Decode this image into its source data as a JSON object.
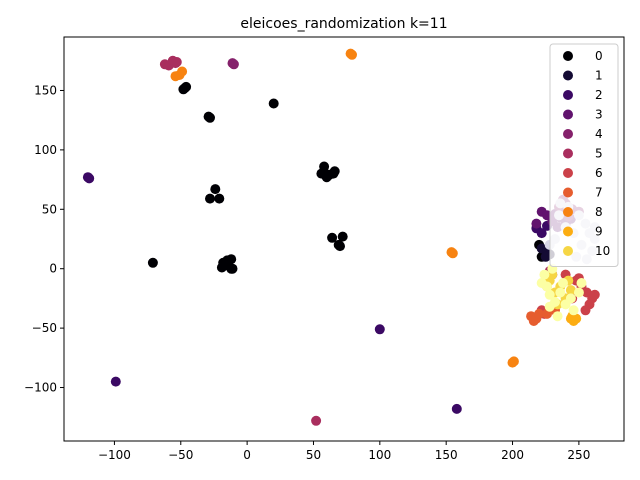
{
  "chart_data": {
    "type": "scatter",
    "title": "eleicoes_randomization k=11",
    "xlabel": "",
    "ylabel": "",
    "xlim": [
      -138,
      284
    ],
    "ylim": [
      -145,
      195
    ],
    "xticks": [
      -100,
      -50,
      0,
      50,
      100,
      150,
      200,
      250
    ],
    "yticks": [
      -100,
      -50,
      0,
      50,
      100,
      150
    ],
    "grid": false,
    "legend_position": "top-right",
    "series": [
      {
        "name": "0",
        "color": "#000004",
        "points": [
          [
            -47,
            152
          ],
          [
            -46,
            153
          ],
          [
            -48,
            151
          ],
          [
            20,
            139
          ],
          [
            -29,
            128
          ],
          [
            -28,
            127
          ],
          [
            -24,
            67
          ],
          [
            -28,
            59
          ],
          [
            -21,
            59
          ],
          [
            -71,
            5
          ],
          [
            -18,
            5
          ],
          [
            -15,
            7
          ],
          [
            -12,
            8
          ],
          [
            -19,
            1
          ],
          [
            -16,
            3
          ],
          [
            -12,
            0
          ],
          [
            -11,
            0
          ],
          [
            56,
            80
          ],
          [
            58,
            86
          ],
          [
            59,
            80
          ],
          [
            60,
            77
          ],
          [
            62,
            79
          ],
          [
            65,
            80
          ],
          [
            66,
            82
          ],
          [
            64,
            26
          ],
          [
            72,
            27
          ],
          [
            70,
            19
          ],
          [
            69,
            20
          ],
          [
            220,
            20
          ],
          [
            222,
            10
          ]
        ]
      },
      {
        "name": "1",
        "color": "#140b34",
        "points": [
          [
            222,
            17
          ],
          [
            226,
            14
          ],
          [
            228,
            12
          ],
          [
            225,
            10
          ]
        ]
      },
      {
        "name": "2",
        "color": "#3b0964",
        "points": [
          [
            -120,
            77
          ],
          [
            -119,
            76
          ],
          [
            -99,
            -95
          ],
          [
            100,
            -51
          ],
          [
            158,
            -118
          ],
          [
            218,
            34
          ],
          [
            222,
            30
          ],
          [
            226,
            36
          ]
        ]
      },
      {
        "name": "3",
        "color": "#61136e",
        "points": [
          [
            222,
            48
          ],
          [
            226,
            45
          ],
          [
            230,
            40
          ],
          [
            236,
            43
          ],
          [
            240,
            38
          ],
          [
            244,
            42
          ],
          [
            218,
            38
          ],
          [
            232,
            46
          ],
          [
            238,
            50
          ],
          [
            234,
            35
          ]
        ]
      },
      {
        "name": "4",
        "color": "#85216b",
        "points": [
          [
            -11,
            173
          ],
          [
            -10,
            172
          ],
          [
            235,
            52
          ],
          [
            240,
            55
          ],
          [
            245,
            50
          ],
          [
            238,
            58
          ],
          [
            242,
            44
          ],
          [
            250,
            48
          ]
        ]
      },
      {
        "name": "5",
        "color": "#a92e5e",
        "points": [
          [
            -62,
            172
          ],
          [
            -59,
            171
          ],
          [
            -56,
            175
          ],
          [
            -54,
            173
          ],
          [
            -53,
            174
          ],
          [
            52,
            -128
          ],
          [
            230,
            -5
          ],
          [
            228,
            -2
          ]
        ]
      },
      {
        "name": "6",
        "color": "#cb4149",
        "points": [
          [
            224,
            -38
          ],
          [
            222,
            -35
          ],
          [
            240,
            -5
          ],
          [
            248,
            -10
          ],
          [
            252,
            -15
          ],
          [
            256,
            -20
          ],
          [
            260,
            -25
          ],
          [
            262,
            -22
          ],
          [
            258,
            -30
          ],
          [
            255,
            -35
          ],
          [
            250,
            -8
          ],
          [
            245,
            -25
          ]
        ]
      },
      {
        "name": "7",
        "color": "#e65d2f",
        "points": [
          [
            214,
            -40
          ],
          [
            216,
            -44
          ],
          [
            218,
            -42
          ],
          [
            220,
            -38
          ],
          [
            226,
            -38
          ],
          [
            232,
            -35
          ]
        ]
      },
      {
        "name": "8",
        "color": "#f78311",
        "points": [
          [
            -54,
            162
          ],
          [
            -51,
            163
          ],
          [
            -49,
            166
          ],
          [
            78,
            181
          ],
          [
            79,
            180
          ],
          [
            154,
            14
          ],
          [
            155,
            13
          ],
          [
            200,
            -79
          ],
          [
            201,
            -78
          ]
        ]
      },
      {
        "name": "9",
        "color": "#fcad12",
        "points": [
          [
            244,
            -42
          ],
          [
            246,
            -44
          ],
          [
            248,
            -42
          ],
          [
            245,
            -40
          ]
        ]
      },
      {
        "name": "10",
        "color": "#f6d645",
        "points": [
          [
            232,
            -20
          ],
          [
            236,
            -15
          ],
          [
            240,
            -25
          ],
          [
            228,
            -10
          ],
          [
            244,
            -18
          ],
          [
            234,
            -30
          ],
          [
            230,
            -5
          ],
          [
            226,
            -15
          ],
          [
            242,
            -10
          ]
        ]
      },
      {
        "name": "",
        "color": "#fcffa4",
        "points": [
          [
            226,
            -15
          ],
          [
            228,
            -22
          ],
          [
            232,
            -28
          ],
          [
            236,
            -20
          ],
          [
            240,
            -30
          ],
          [
            224,
            -5
          ],
          [
            230,
            0
          ],
          [
            238,
            -12
          ],
          [
            244,
            -25
          ],
          [
            246,
            -35
          ],
          [
            234,
            -40
          ],
          [
            222,
            -12
          ],
          [
            228,
            -32
          ],
          [
            250,
            -20
          ],
          [
            252,
            -12
          ]
        ]
      },
      {
        "name": "",
        "color": "#d8d6e6",
        "points": [
          [
            235,
            45
          ],
          [
            242,
            52
          ],
          [
            250,
            45
          ],
          [
            255,
            38
          ],
          [
            258,
            30
          ],
          [
            262,
            25
          ],
          [
            260,
            15
          ],
          [
            252,
            20
          ],
          [
            246,
            30
          ],
          [
            240,
            35
          ],
          [
            232,
            25
          ],
          [
            228,
            20
          ],
          [
            248,
            10
          ],
          [
            256,
            8
          ],
          [
            262,
            35
          ],
          [
            236,
            55
          ]
        ]
      }
    ]
  }
}
